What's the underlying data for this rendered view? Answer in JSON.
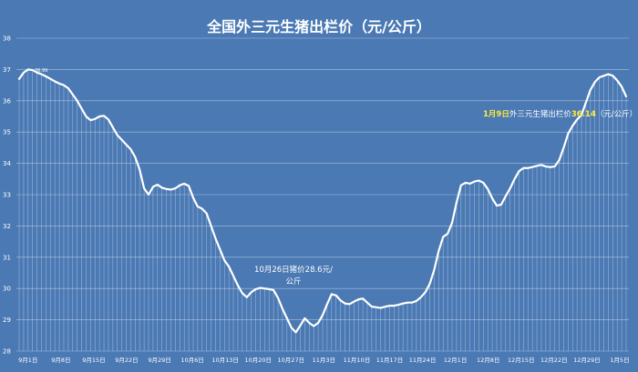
{
  "chart_data": {
    "type": "area",
    "title": "全国外三元生猪出栏价（元/公斤）",
    "xlabel": "",
    "ylabel": "",
    "ylim": [
      28,
      38
    ],
    "yticks": [
      28,
      29,
      30,
      31,
      32,
      33,
      34,
      35,
      36,
      37,
      38
    ],
    "grid": true,
    "legend": "none",
    "colors": {
      "background": "#4a79b4",
      "line": "#ffffff",
      "gridline": "#c9d8ec",
      "highlight": "#ffeb3b"
    },
    "xtick_labels": [
      "9月1日",
      "9月8日",
      "9月15日",
      "9月22日",
      "9月29日",
      "10月6日",
      "10月13日",
      "10月20日",
      "10月27日",
      "11月3日",
      "11月10日",
      "11月17日",
      "11月24日",
      "12月1日",
      "12月8日",
      "12月15日",
      "12月22日",
      "12月29日",
      "1月5日"
    ],
    "values": [
      36.7,
      36.9,
      37.0,
      36.98,
      36.9,
      36.85,
      36.78,
      36.7,
      36.62,
      36.55,
      36.5,
      36.4,
      36.2,
      36.0,
      35.75,
      35.5,
      35.38,
      35.42,
      35.5,
      35.52,
      35.4,
      35.15,
      34.9,
      34.75,
      34.6,
      34.45,
      34.2,
      33.8,
      33.2,
      33.0,
      33.25,
      33.32,
      33.22,
      33.18,
      33.16,
      33.2,
      33.3,
      33.35,
      33.28,
      32.9,
      32.62,
      32.55,
      32.4,
      32.0,
      31.6,
      31.25,
      30.9,
      30.7,
      30.4,
      30.1,
      29.85,
      29.72,
      29.88,
      29.98,
      30.02,
      30.0,
      29.98,
      29.95,
      29.7,
      29.35,
      29.05,
      28.75,
      28.6,
      28.82,
      29.05,
      28.9,
      28.8,
      28.9,
      29.15,
      29.5,
      29.82,
      29.78,
      29.62,
      29.52,
      29.5,
      29.58,
      29.65,
      29.68,
      29.55,
      29.42,
      29.4,
      29.38,
      29.42,
      29.45,
      29.45,
      29.48,
      29.52,
      29.55,
      29.55,
      29.6,
      29.72,
      29.88,
      30.15,
      30.6,
      31.2,
      31.65,
      31.75,
      32.1,
      32.75,
      33.3,
      33.38,
      33.35,
      33.42,
      33.45,
      33.38,
      33.18,
      32.88,
      32.65,
      32.68,
      32.95,
      33.2,
      33.5,
      33.75,
      33.85,
      33.85,
      33.88,
      33.92,
      33.95,
      33.9,
      33.88,
      33.9,
      34.1,
      34.5,
      34.95,
      35.2,
      35.4,
      35.55,
      35.95,
      36.35,
      36.6,
      36.75,
      36.8,
      36.85,
      36.8,
      36.65,
      36.45,
      36.14
    ],
    "annotations": [
      {
        "text": "36.99"
      },
      {
        "line1": "10月26日猪价28.6元/",
        "line2": "公斤"
      },
      {
        "date": "1月9日",
        "mid": "外三元生猪出栏价",
        "price": "36.14",
        "unit": "（元/公斤）"
      }
    ]
  }
}
